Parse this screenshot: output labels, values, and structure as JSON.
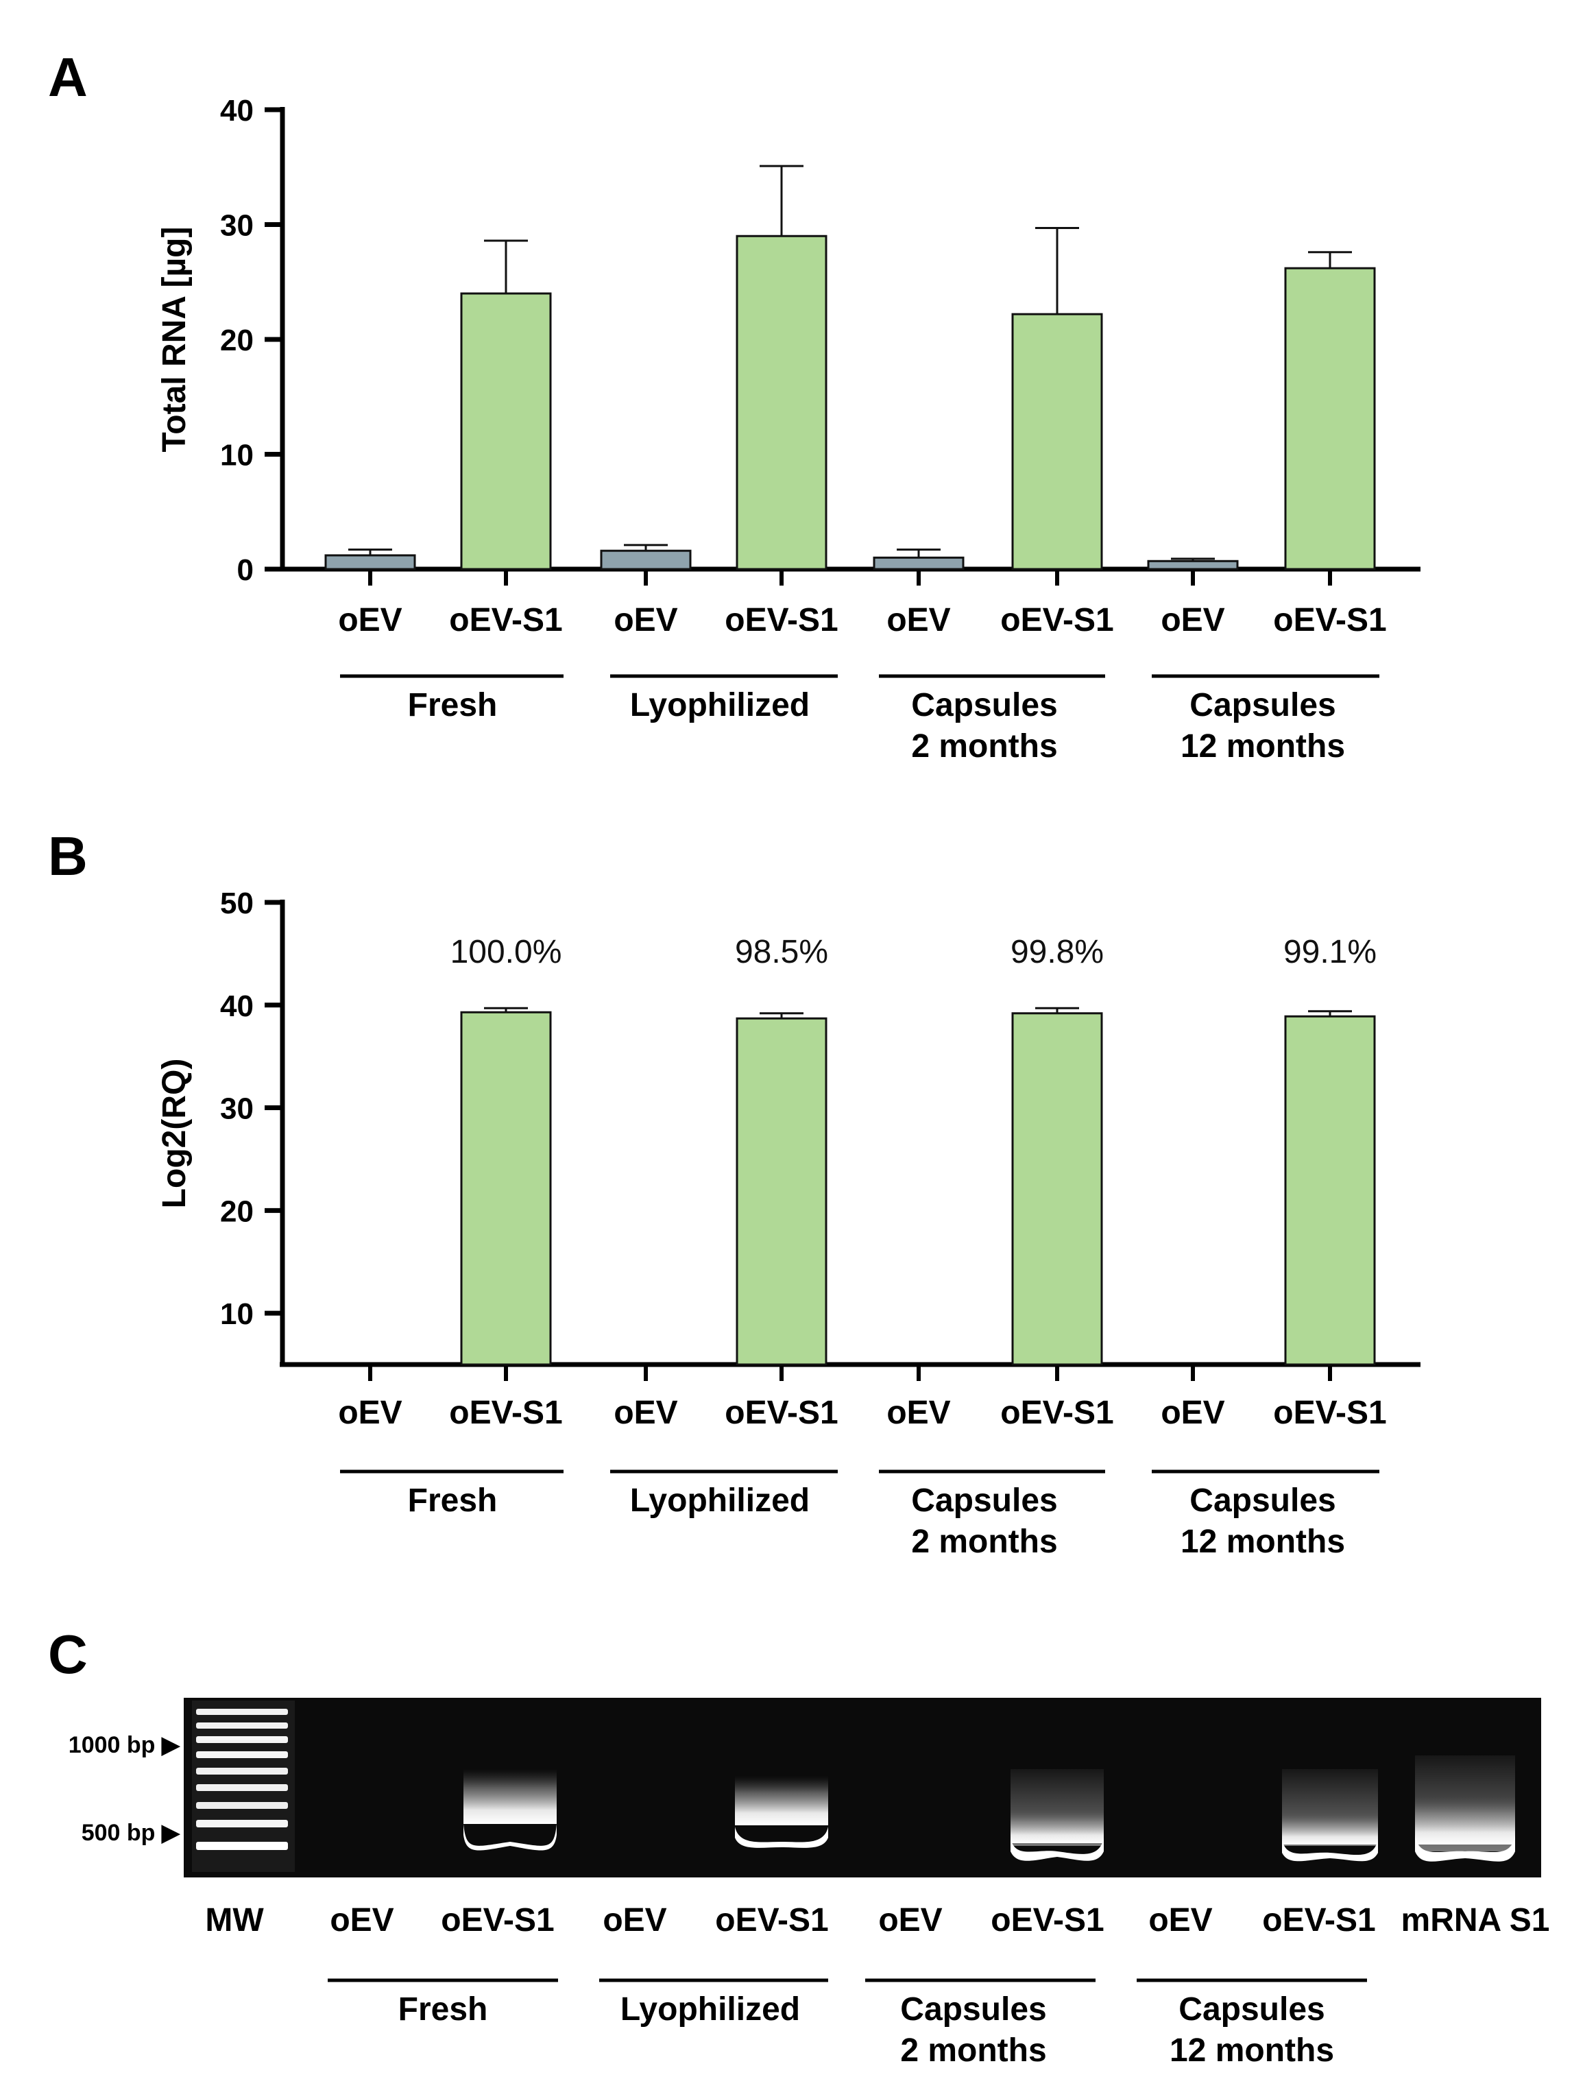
{
  "colors": {
    "oev": "#8fa3ad",
    "oev_s1": "#b0d996",
    "axis": "#000000",
    "gel_bg": "#0b0b0b",
    "band": "#ffffff"
  },
  "panels": [
    {
      "letter": "A"
    },
    {
      "letter": "B"
    },
    {
      "letter": "C"
    }
  ],
  "groups": [
    {
      "lines": [
        "Fresh"
      ]
    },
    {
      "lines": [
        "Lyophilized"
      ]
    },
    {
      "lines": [
        "Capsules",
        "2 months"
      ]
    },
    {
      "lines": [
        "Capsules",
        "12 months"
      ]
    }
  ],
  "categories": [
    "oEV",
    "oEV-S1",
    "oEV",
    "oEV-S1",
    "oEV",
    "oEV-S1",
    "oEV",
    "oEV-S1"
  ],
  "chart_data": [
    {
      "type": "bar",
      "panel": "A",
      "ylabel": "Total RNA [µg]",
      "ylim": [
        0,
        40
      ],
      "yticks": [
        "0",
        "10",
        "20",
        "30",
        "40"
      ],
      "categories": [
        "oEV",
        "oEV-S1",
        "oEV",
        "oEV-S1",
        "oEV",
        "oEV-S1",
        "oEV",
        "oEV-S1"
      ],
      "values": [
        1.2,
        24.0,
        1.6,
        29.0,
        1.0,
        22.2,
        0.7,
        26.2
      ],
      "errors": [
        0.5,
        4.6,
        0.5,
        6.1,
        0.7,
        7.5,
        0.2,
        1.4
      ],
      "group_labels": [
        "Fresh",
        "Lyophilized",
        "Capsules 2 months",
        "Capsules 12 months"
      ]
    },
    {
      "type": "bar",
      "panel": "B",
      "ylabel": "Log2(RQ)",
      "ylim": [
        5,
        50
      ],
      "yticks": [
        "10",
        "20",
        "30",
        "40",
        "50"
      ],
      "categories": [
        "oEV",
        "oEV-S1",
        "oEV",
        "oEV-S1",
        "oEV",
        "oEV-S1",
        "oEV",
        "oEV-S1"
      ],
      "values": [
        null,
        39.3,
        null,
        38.7,
        null,
        39.2,
        null,
        38.9
      ],
      "errors": [
        null,
        0.4,
        null,
        0.5,
        null,
        0.5,
        null,
        0.5
      ],
      "annotations": [
        "100.0%",
        "98.5%",
        "99.8%",
        "99.1%"
      ],
      "group_labels": [
        "Fresh",
        "Lyophilized",
        "Capsules 2 months",
        "Capsules 12 months"
      ]
    }
  ],
  "gel": {
    "markers": [
      "1000 bp ▶",
      "500 bp ▶"
    ],
    "lanes": [
      "MW",
      "oEV",
      "oEV-S1",
      "oEV",
      "oEV-S1",
      "oEV",
      "oEV-S1",
      "oEV",
      "oEV-S1",
      "mRNA S1"
    ],
    "band_present": [
      true,
      false,
      true,
      false,
      true,
      false,
      true,
      false,
      true,
      true
    ]
  }
}
